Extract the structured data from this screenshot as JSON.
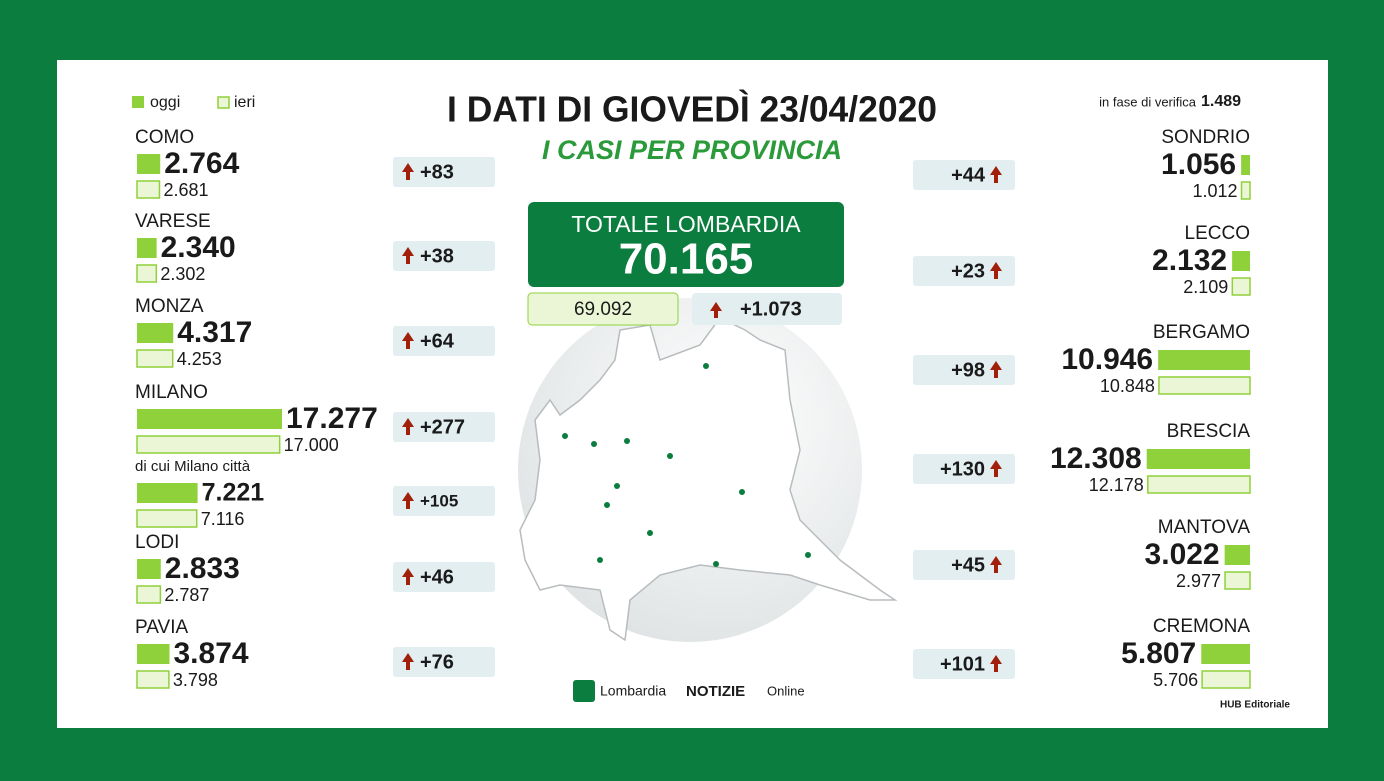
{
  "legend": {
    "today": "oggi",
    "yesterday": "ieri"
  },
  "header": {
    "title": "I DATI DI GIOVEDÌ 23/04/2020",
    "subtitle": "I CASI PER PROVINCIA"
  },
  "verification": {
    "label": "in fase di verifica",
    "value": "1.489"
  },
  "total": {
    "label": "TOTALE LOMBARDIA",
    "today": "70.165",
    "yesterday": "69.092",
    "change": "+1.073"
  },
  "left": [
    {
      "name": "COMO",
      "today": {
        "value": 2764,
        "label": "2.764"
      },
      "yesterday": {
        "value": 2681,
        "label": "2.681"
      },
      "change": "+83"
    },
    {
      "name": "VARESE",
      "today": {
        "value": 2340,
        "label": "2.340"
      },
      "yesterday": {
        "value": 2302,
        "label": "2.302"
      },
      "change": "+38"
    },
    {
      "name": "MONZA",
      "today": {
        "value": 4317,
        "label": "4.317"
      },
      "yesterday": {
        "value": 4253,
        "label": "4.253"
      },
      "change": "+64"
    },
    {
      "name": "MILANO",
      "today": {
        "value": 17277,
        "label": "17.277"
      },
      "yesterday": {
        "value": 17000,
        "label": "17.000"
      },
      "change": "+277"
    },
    {
      "name": "di cui Milano città",
      "today": {
        "value": 7221,
        "label": "7.221"
      },
      "yesterday": {
        "value": 7116,
        "label": "7.116"
      },
      "change": "+105"
    },
    {
      "name": "LODI",
      "today": {
        "value": 2833,
        "label": "2.833"
      },
      "yesterday": {
        "value": 2787,
        "label": "2.787"
      },
      "change": "+46"
    },
    {
      "name": "PAVIA",
      "today": {
        "value": 3874,
        "label": "3.874"
      },
      "yesterday": {
        "value": 3798,
        "label": "3.798"
      },
      "change": "+76"
    }
  ],
  "right": [
    {
      "name": "SONDRIO",
      "today": {
        "value": 1056,
        "label": "1.056"
      },
      "yesterday": {
        "value": 1012,
        "label": "1.012"
      },
      "change": "+44"
    },
    {
      "name": "LECCO",
      "today": {
        "value": 2132,
        "label": "2.132"
      },
      "yesterday": {
        "value": 2109,
        "label": "2.109"
      },
      "change": "+23"
    },
    {
      "name": "BERGAMO",
      "today": {
        "value": 10946,
        "label": "10.946"
      },
      "yesterday": {
        "value": 10848,
        "label": "10.848"
      },
      "change": "+98"
    },
    {
      "name": "BRESCIA",
      "today": {
        "value": 12308,
        "label": "12.308"
      },
      "yesterday": {
        "value": 12178,
        "label": "12.178"
      },
      "change": "+130"
    },
    {
      "name": "MANTOVA",
      "today": {
        "value": 3022,
        "label": "3.022"
      },
      "yesterday": {
        "value": 2977,
        "label": "2.977"
      },
      "change": "+45"
    },
    {
      "name": "CREMONA",
      "today": {
        "value": 5807,
        "label": "5.807"
      },
      "yesterday": {
        "value": 5706,
        "label": "5.706"
      },
      "change": "+101"
    }
  ],
  "footer": {
    "logo_a": "Lombardia",
    "logo_b": "NOTIZIE",
    "logo_c": "Online",
    "credit": "HUB Editoriale"
  }
}
